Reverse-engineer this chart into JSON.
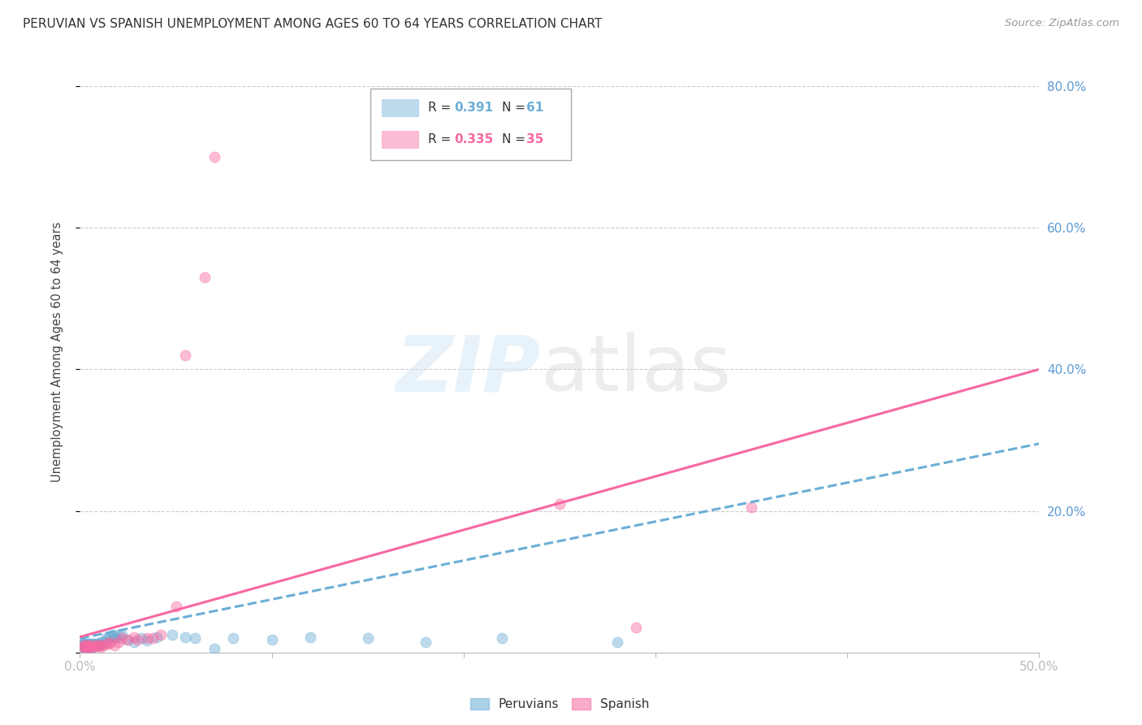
{
  "title": "PERUVIAN VS SPANISH UNEMPLOYMENT AMONG AGES 60 TO 64 YEARS CORRELATION CHART",
  "source": "Source: ZipAtlas.com",
  "ylabel": "Unemployment Among Ages 60 to 64 years",
  "xlim": [
    0.0,
    0.5
  ],
  "ylim": [
    0.0,
    0.85
  ],
  "right_ytick_labels": [
    "20.0%",
    "40.0%",
    "60.0%",
    "80.0%"
  ],
  "right_ytick_positions": [
    0.2,
    0.4,
    0.6,
    0.8
  ],
  "peruvian_color": "#6baed6",
  "spanish_color": "#f768a1",
  "legend_R_peru": "0.391",
  "legend_N_peru": "61",
  "legend_R_span": "0.335",
  "legend_N_span": "35",
  "peru_line_x0": 0.0,
  "peru_line_x1": 0.5,
  "peru_line_y0": 0.02,
  "peru_line_y1": 0.295,
  "span_line_x0": 0.0,
  "span_line_x1": 0.5,
  "span_line_y0": 0.022,
  "span_line_y1": 0.4,
  "peruvian_x": [
    0.001,
    0.001,
    0.001,
    0.001,
    0.002,
    0.002,
    0.002,
    0.002,
    0.002,
    0.003,
    0.003,
    0.003,
    0.003,
    0.004,
    0.004,
    0.004,
    0.005,
    0.005,
    0.005,
    0.005,
    0.006,
    0.006,
    0.006,
    0.007,
    0.007,
    0.007,
    0.008,
    0.008,
    0.008,
    0.009,
    0.009,
    0.01,
    0.01,
    0.01,
    0.011,
    0.012,
    0.013,
    0.014,
    0.015,
    0.016,
    0.017,
    0.018,
    0.019,
    0.02,
    0.022,
    0.025,
    0.028,
    0.032,
    0.035,
    0.04,
    0.048,
    0.055,
    0.06,
    0.07,
    0.08,
    0.1,
    0.12,
    0.15,
    0.18,
    0.22,
    0.28
  ],
  "peruvian_y": [
    0.01,
    0.012,
    0.01,
    0.008,
    0.01,
    0.012,
    0.01,
    0.008,
    0.012,
    0.01,
    0.012,
    0.008,
    0.01,
    0.01,
    0.008,
    0.012,
    0.008,
    0.01,
    0.012,
    0.01,
    0.01,
    0.012,
    0.01,
    0.01,
    0.008,
    0.012,
    0.01,
    0.012,
    0.01,
    0.01,
    0.012,
    0.01,
    0.012,
    0.01,
    0.015,
    0.015,
    0.015,
    0.02,
    0.022,
    0.022,
    0.025,
    0.023,
    0.02,
    0.025,
    0.025,
    0.018,
    0.015,
    0.02,
    0.017,
    0.022,
    0.025,
    0.022,
    0.02,
    0.005,
    0.02,
    0.018,
    0.022,
    0.02,
    0.015,
    0.02,
    0.015
  ],
  "spanish_x": [
    0.001,
    0.002,
    0.002,
    0.003,
    0.003,
    0.004,
    0.004,
    0.005,
    0.005,
    0.006,
    0.007,
    0.008,
    0.009,
    0.01,
    0.011,
    0.012,
    0.014,
    0.015,
    0.016,
    0.018,
    0.02,
    0.022,
    0.025,
    0.028,
    0.03,
    0.035,
    0.038,
    0.042,
    0.05,
    0.055,
    0.065,
    0.07,
    0.25,
    0.29,
    0.35
  ],
  "spanish_y": [
    0.008,
    0.01,
    0.008,
    0.01,
    0.008,
    0.008,
    0.01,
    0.008,
    0.01,
    0.008,
    0.008,
    0.01,
    0.01,
    0.01,
    0.008,
    0.01,
    0.012,
    0.012,
    0.015,
    0.01,
    0.015,
    0.02,
    0.018,
    0.022,
    0.018,
    0.02,
    0.02,
    0.025,
    0.065,
    0.42,
    0.53,
    0.7,
    0.21,
    0.035,
    0.205
  ],
  "background_color": "#ffffff",
  "grid_color": "#cccccc",
  "title_color": "#333333",
  "right_tick_color": "#5b9bd5",
  "bottom_tick_color": "#5b9bd5"
}
